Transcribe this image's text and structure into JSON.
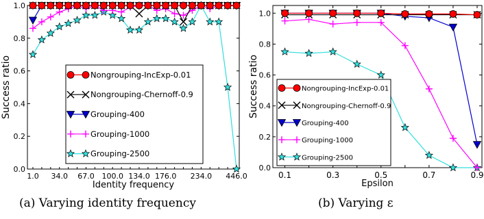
{
  "chart_data": [
    {
      "type": "line",
      "caption": "(a) Varying identity frequency",
      "xlabel": "Identity frequency",
      "ylabel": "Success ratio",
      "x_tick_labels": [
        "1.0",
        "34.0",
        "67.0",
        "100.0",
        "134.0",
        "176.0",
        "234.0",
        "446.0"
      ],
      "ylim": [
        0.0,
        1.0
      ],
      "y_ticks": [
        "0.0",
        "0.2",
        "0.4",
        "0.6",
        "0.8",
        "1.0"
      ],
      "grid": false,
      "legend_position": "center-right",
      "series": [
        {
          "name": "Nongrouping-IncExp-0.01",
          "color": "#ff0000",
          "marker": "circle",
          "values": [
            1,
            1,
            1,
            1,
            1,
            1,
            1,
            1,
            1,
            1,
            1,
            1,
            1,
            1,
            1,
            1,
            1,
            1,
            1,
            1,
            1,
            1,
            1,
            1
          ]
        },
        {
          "name": "Nongrouping-Chernoff-0.9",
          "color": "#000000",
          "marker": "x",
          "values": [
            1,
            1,
            1,
            1,
            1,
            1,
            1,
            1,
            1,
            1,
            1,
            1,
            0.95,
            1,
            1,
            1,
            1,
            0.9,
            1,
            1,
            1,
            1,
            1,
            1
          ]
        },
        {
          "name": "Grouping-400",
          "color": "#0000cc",
          "marker": "triangle-down",
          "values": [
            0.91,
            1,
            1,
            1,
            1,
            1,
            1,
            1,
            1,
            1,
            1,
            1,
            1,
            1,
            1,
            1,
            1,
            1,
            1,
            1,
            1,
            1,
            1,
            1
          ]
        },
        {
          "name": "Grouping-1000",
          "color": "#ff00ff",
          "marker": "plus",
          "values": [
            0.86,
            0.9,
            0.93,
            0.96,
            0.98,
            1,
            0.98,
            1,
            0.97,
            0.97,
            0.96,
            0.99,
            1,
            1,
            0.97,
            0.98,
            0.95,
            0.94,
            0.97,
            1,
            0.98,
            1,
            1,
            1
          ]
        },
        {
          "name": "Grouping-2500",
          "color": "#33dddd",
          "marker": "star",
          "values": [
            0.7,
            0.79,
            0.83,
            0.87,
            0.89,
            0.91,
            0.94,
            0.94,
            0.96,
            0.94,
            0.92,
            0.85,
            0.85,
            0.9,
            0.92,
            0.92,
            0.9,
            0.86,
            0.9,
            1,
            0.9,
            0.9,
            0.5,
            0.0
          ]
        }
      ]
    },
    {
      "type": "line",
      "caption": "(b) Varying ε",
      "xlabel": "Epsilon",
      "ylabel": "Success ratio",
      "x": [
        0.1,
        0.2,
        0.3,
        0.4,
        0.5,
        0.6,
        0.7,
        0.8,
        0.9
      ],
      "x_tick_labels": [
        "0.1",
        "0.3",
        "0.5",
        "0.7",
        "0.9"
      ],
      "xlim": [
        0.05,
        0.92
      ],
      "ylim": [
        0.0,
        1.05
      ],
      "y_ticks": [
        "0.0",
        "0.2",
        "0.4",
        "0.6",
        "0.8",
        "1.0"
      ],
      "grid": false,
      "legend_position": "center-left",
      "series": [
        {
          "name": "Nongrouping-IncExp-0.01",
          "color": "#ff0000",
          "marker": "circle",
          "values": [
            1.0,
            1.0,
            1.0,
            1.0,
            1.0,
            0.995,
            0.995,
            0.995,
            0.99
          ]
        },
        {
          "name": "Nongrouping-Chernoff-0.9",
          "color": "#000000",
          "marker": "x",
          "values": [
            0.99,
            0.99,
            0.99,
            0.99,
            0.99,
            0.99,
            0.99,
            0.99,
            0.99
          ]
        },
        {
          "name": "Grouping-400",
          "color": "#0000cc",
          "marker": "triangle-down",
          "values": [
            1.0,
            1.0,
            1.0,
            1.0,
            1.0,
            0.98,
            0.97,
            0.91,
            0.15
          ]
        },
        {
          "name": "Grouping-1000",
          "color": "#ff00ff",
          "marker": "plus",
          "values": [
            0.95,
            0.96,
            0.93,
            0.94,
            0.94,
            0.79,
            0.51,
            0.19,
            0.0
          ]
        },
        {
          "name": "Grouping-2500",
          "color": "#33dddd",
          "marker": "star",
          "values": [
            0.75,
            0.74,
            0.75,
            0.67,
            0.6,
            0.26,
            0.08,
            0.0,
            0.0
          ]
        }
      ]
    }
  ]
}
